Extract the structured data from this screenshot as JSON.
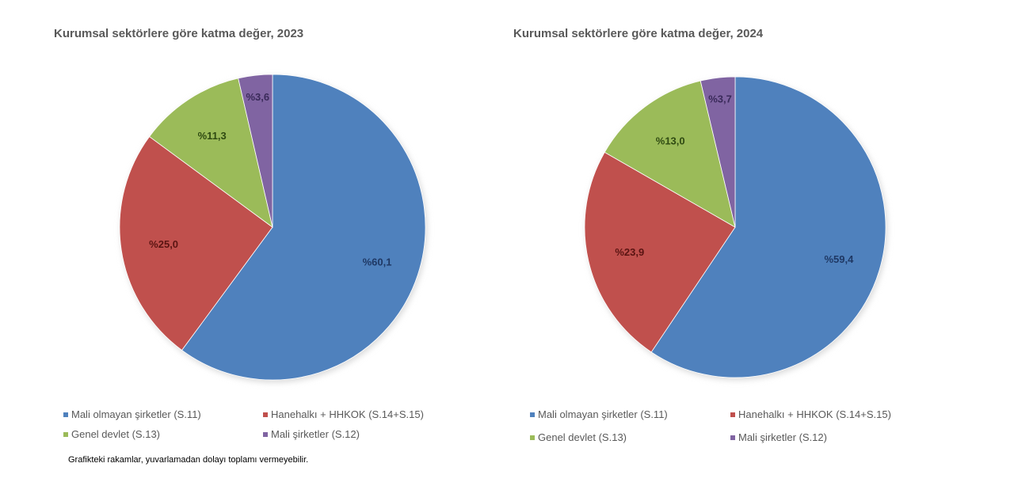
{
  "colors": {
    "s11": "#4f81bd",
    "s14_15": "#c0504d",
    "s13": "#9bbb59",
    "s12": "#8064a2"
  },
  "legend": {
    "items": [
      {
        "key": "s11",
        "label": "Mali olmayan şirketler (S.11)",
        "color": "#4f81bd"
      },
      {
        "key": "s14_15",
        "label": "Hanehalkı + HHKOK (S.14+S.15)",
        "color": "#c0504d"
      },
      {
        "key": "s13",
        "label": "Genel devlet (S.13)",
        "color": "#9bbb59"
      },
      {
        "key": "s12",
        "label": "Mali şirketler (S.12)",
        "color": "#8064a2"
      }
    ]
  },
  "footnote": "Grafikteki rakamlar, yuvarlamadan dolayı toplamı vermeyebilir.",
  "charts": [
    {
      "title": "Kurumsal sektörlere göre katma değer, 2023",
      "labels": [
        "%60,1",
        "%25,0",
        "%11,3",
        "%3,6"
      ]
    },
    {
      "title": "Kurumsal sektörlere göre katma değer, 2024",
      "labels": [
        "%59,4",
        "%23,9",
        "%13,0",
        "%3,7"
      ]
    }
  ],
  "chart_data": [
    {
      "type": "pie",
      "title": "Kurumsal sektörlere göre katma değer, 2023",
      "categories": [
        "Mali olmayan şirketler (S.11)",
        "Hanehalkı + HHKOK (S.14+S.15)",
        "Genel devlet (S.13)",
        "Mali şirketler (S.12)"
      ],
      "values": [
        60.1,
        25.0,
        11.3,
        3.6
      ],
      "data_labels": [
        "%60,1",
        "%25,0",
        "%11,3",
        "%3,6"
      ],
      "colors": [
        "#4f81bd",
        "#c0504d",
        "#9bbb59",
        "#8064a2"
      ],
      "start_angle_deg": 0,
      "direction": "clockwise from 12 o'clock",
      "legend_position": "bottom"
    },
    {
      "type": "pie",
      "title": "Kurumsal sektörlere göre katma değer, 2024",
      "categories": [
        "Mali olmayan şirketler (S.11)",
        "Hanehalkı + HHKOK (S.14+S.15)",
        "Genel devlet (S.13)",
        "Mali şirketler (S.12)"
      ],
      "values": [
        59.4,
        23.9,
        13.0,
        3.7
      ],
      "data_labels": [
        "%59,4",
        "%23,9",
        "%13,0",
        "%3,7"
      ],
      "colors": [
        "#4f81bd",
        "#c0504d",
        "#9bbb59",
        "#8064a2"
      ],
      "start_angle_deg": 0,
      "direction": "clockwise from 12 o'clock",
      "legend_position": "bottom"
    }
  ]
}
